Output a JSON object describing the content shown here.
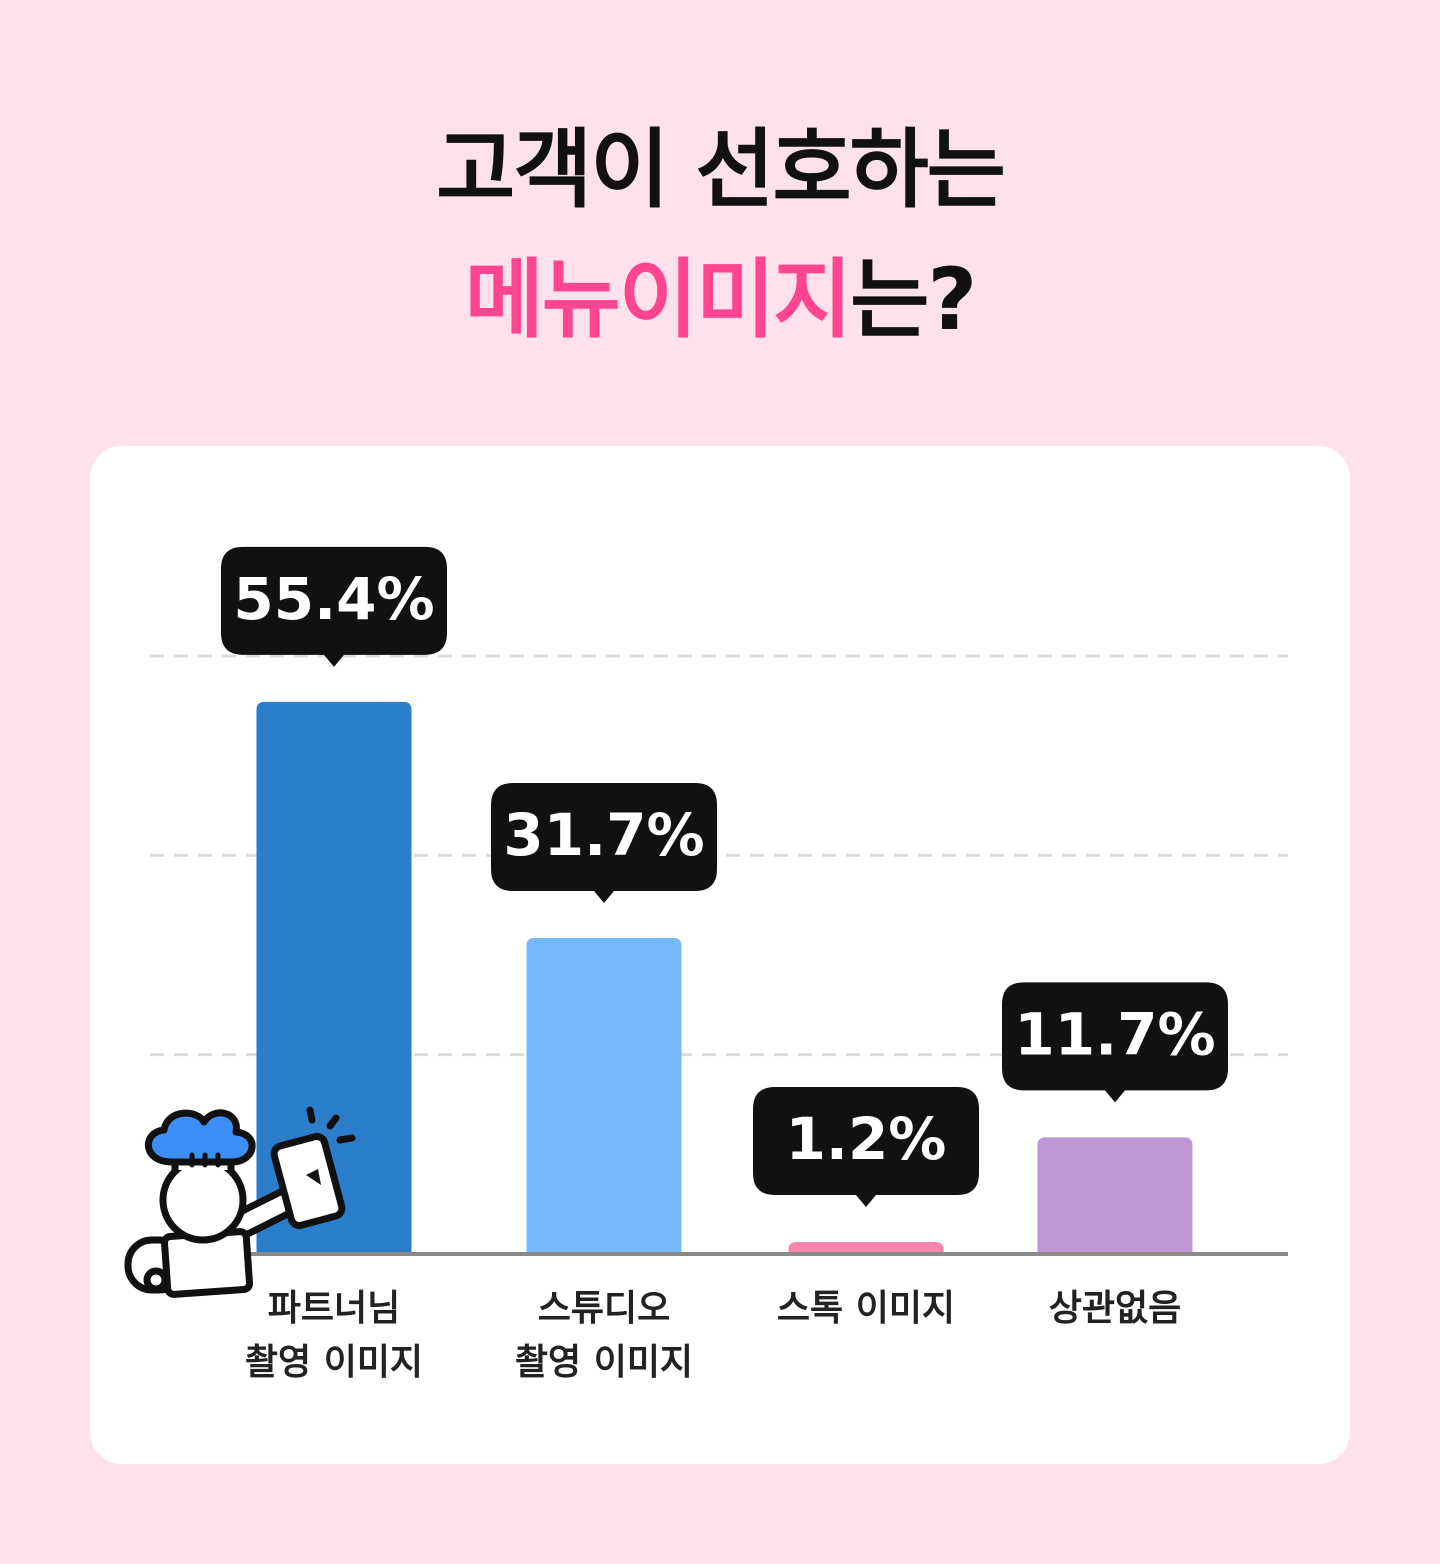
{
  "chart_data": {
    "type": "bar",
    "title": "고객이 선호하는",
    "title_highlight": "메뉴이미지",
    "title_suffix": "는?",
    "categories": [
      "파트너님\n촬영 이미지",
      "스튜디오\n촬영 이미지",
      "스톡 이미지",
      "상관없음"
    ],
    "values": [
      55.4,
      31.7,
      1.2,
      11.7
    ],
    "value_labels": [
      "55.4%",
      "31.7%",
      "1.2%",
      "11.7%"
    ],
    "colors": [
      "#2b7ecb",
      "#75b8fc",
      "#f585ae",
      "#be96d4"
    ],
    "highlight_color": "#ff4591",
    "ylim": [
      0,
      60
    ],
    "yticks": [
      20,
      40,
      60
    ],
    "grid": true
  }
}
